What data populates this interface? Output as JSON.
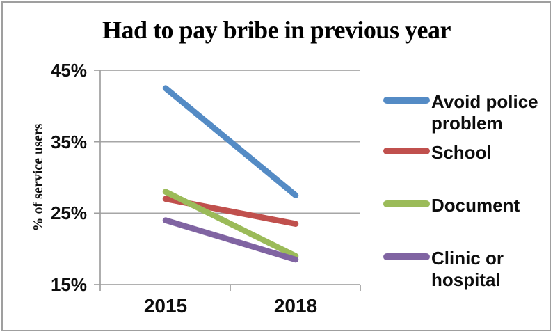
{
  "chart_data": {
    "type": "line",
    "title": "Had to pay bribe in previous year",
    "ylabel": "% of service users",
    "xlabel": "",
    "categories": [
      "2015",
      "2018"
    ],
    "ytick_labels": [
      "45%",
      "35%",
      "25%",
      "15%"
    ],
    "yticks": [
      45,
      35,
      25,
      15
    ],
    "ylim": [
      15,
      45
    ],
    "grid": true,
    "legend_position": "right",
    "axis_color": "#9f9f9f",
    "gridline_color": "#a6a6a6",
    "series": [
      {
        "name": "Avoid police problem",
        "color": "#548bc5",
        "values": [
          42.5,
          27.5
        ]
      },
      {
        "name": "School",
        "color": "#c0504d",
        "values": [
          27.0,
          23.5
        ]
      },
      {
        "name": "Document",
        "color": "#9bbb59",
        "values": [
          28.0,
          19.0
        ]
      },
      {
        "name": "Clinic or hospital",
        "color": "#8064a2",
        "values": [
          24.0,
          18.5
        ]
      }
    ]
  }
}
